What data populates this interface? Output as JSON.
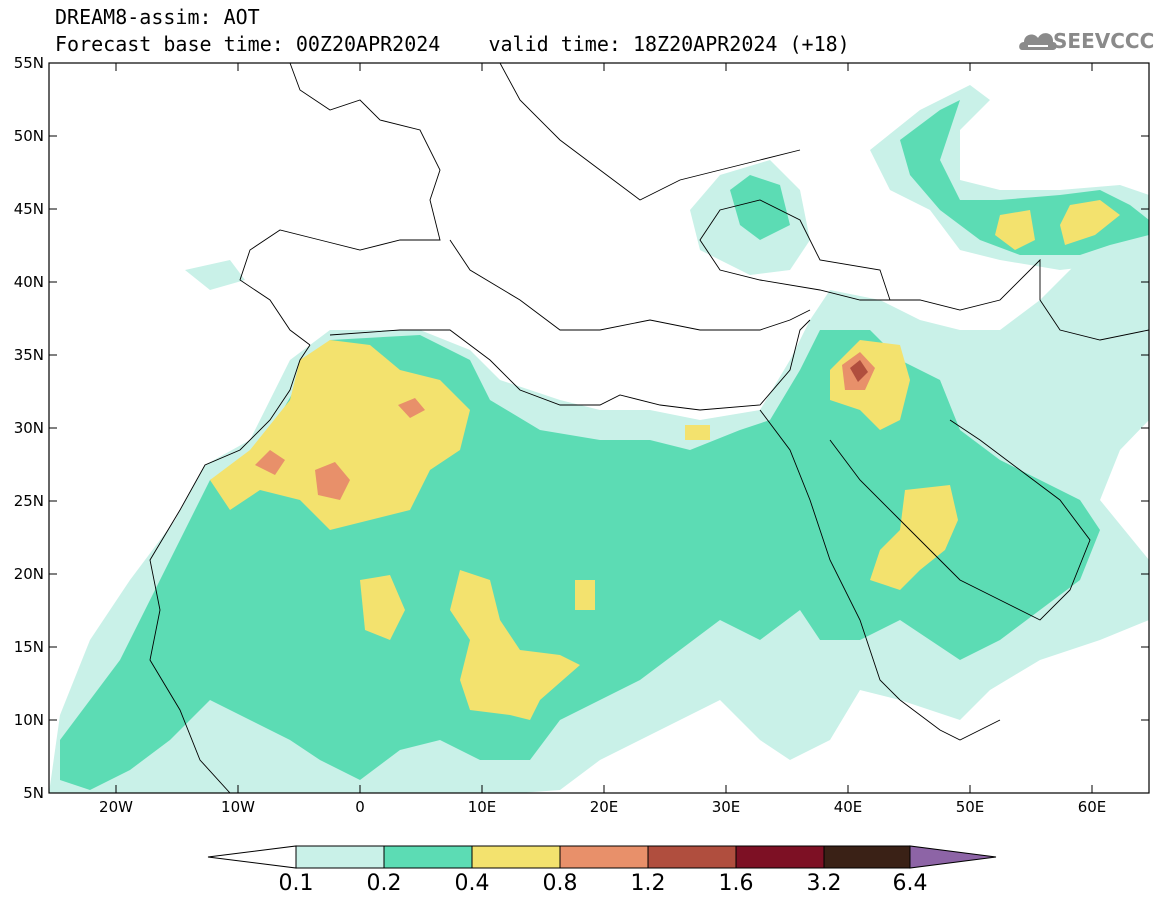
{
  "header": {
    "line1": "DREAM8-assim: AOT",
    "line2": "Forecast base time: 00Z20APR2024    valid time: 18Z20APR2024 (+18)"
  },
  "logo": {
    "text": "SEEVCCC",
    "icon": "cloud-icon"
  },
  "map": {
    "type": "filled-contour-map",
    "variable": "AOT",
    "lat_ticks": [
      "55N",
      "50N",
      "45N",
      "40N",
      "35N",
      "30N",
      "25N",
      "20N",
      "15N",
      "10N",
      "5N"
    ],
    "lon_ticks": [
      "20W",
      "10W",
      "0",
      "10E",
      "20E",
      "30E",
      "40E",
      "50E",
      "60E"
    ],
    "lat_range": [
      5,
      55
    ],
    "lon_range": [
      -25,
      65
    ]
  },
  "colorbar": {
    "labels": [
      "0.1",
      "0.2",
      "0.4",
      "0.8",
      "1.2",
      "1.6",
      "3.2",
      "6.4"
    ],
    "colors": [
      "#ffffff",
      "#c9f1e8",
      "#5cdcb4",
      "#f3e26e",
      "#e8906a",
      "#b04e3e",
      "#7d1024",
      "#3a2116",
      "#8d64a6"
    ]
  }
}
